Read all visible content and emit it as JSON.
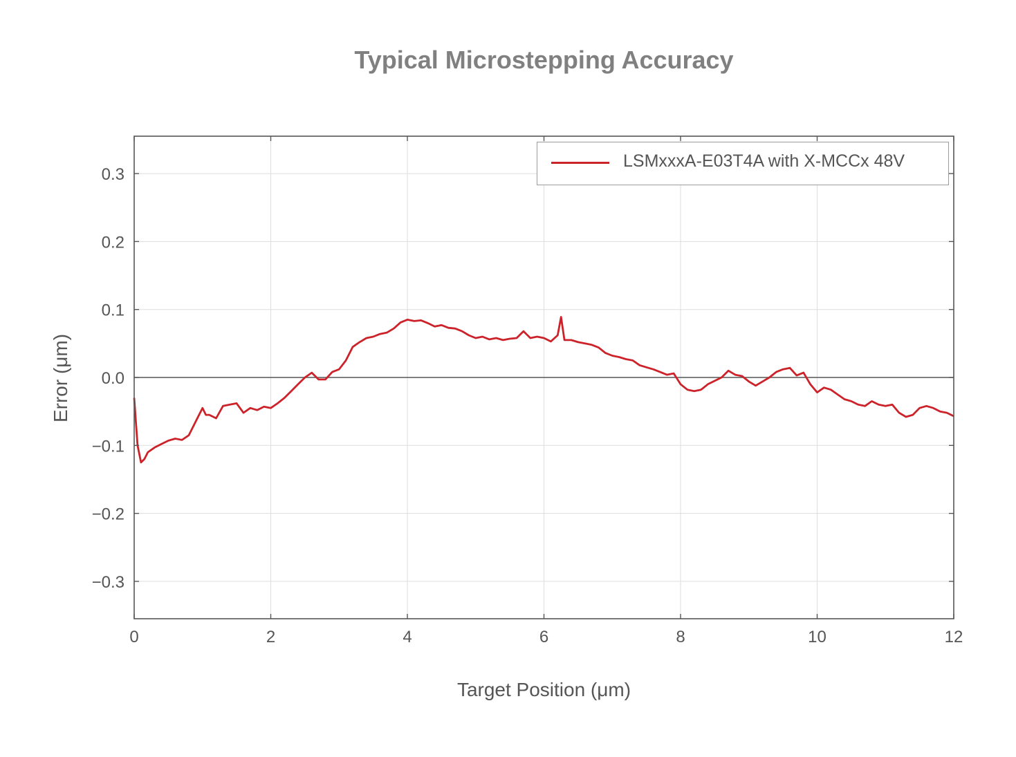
{
  "chart_data": {
    "type": "line",
    "title": "Typical Microstepping Accuracy",
    "xlabel": "Target Position (μm)",
    "ylabel": "Error (μm)",
    "xlim": [
      0,
      12
    ],
    "ylim": [
      -0.355,
      0.355
    ],
    "xticks": [
      0,
      2,
      4,
      6,
      8,
      10,
      12
    ],
    "xtick_labels": [
      "0",
      "2",
      "4",
      "6",
      "8",
      "10",
      "12"
    ],
    "yticks": [
      0.3,
      0.2,
      0.1,
      0.0,
      -0.1,
      -0.2,
      -0.3
    ],
    "ytick_labels": [
      "0.3",
      "0.2",
      "0.1",
      "0.0",
      "−0.1",
      "−0.2",
      "−0.3"
    ],
    "grid": true,
    "zero_line": true,
    "legend_position": "top-right",
    "series": [
      {
        "name": "LSMxxxA-E03T4A with X-MCCx 48V",
        "color": "#cc2229",
        "x": [
          0,
          0.05,
          0.1,
          0.15,
          0.2,
          0.3,
          0.4,
          0.5,
          0.6,
          0.7,
          0.8,
          0.9,
          1.0,
          1.05,
          1.1,
          1.2,
          1.3,
          1.4,
          1.5,
          1.6,
          1.7,
          1.8,
          1.9,
          2.0,
          2.1,
          2.2,
          2.3,
          2.4,
          2.5,
          2.6,
          2.7,
          2.8,
          2.9,
          3.0,
          3.1,
          3.2,
          3.3,
          3.4,
          3.5,
          3.6,
          3.7,
          3.8,
          3.9,
          4.0,
          4.1,
          4.2,
          4.3,
          4.4,
          4.5,
          4.6,
          4.7,
          4.8,
          4.9,
          5.0,
          5.1,
          5.2,
          5.3,
          5.4,
          5.5,
          5.6,
          5.7,
          5.8,
          5.9,
          6.0,
          6.1,
          6.2,
          6.25,
          6.3,
          6.4,
          6.5,
          6.6,
          6.7,
          6.8,
          6.9,
          7.0,
          7.1,
          7.2,
          7.3,
          7.4,
          7.5,
          7.6,
          7.7,
          7.8,
          7.9,
          8.0,
          8.1,
          8.2,
          8.3,
          8.4,
          8.5,
          8.6,
          8.7,
          8.8,
          8.9,
          9.0,
          9.1,
          9.2,
          9.3,
          9.4,
          9.5,
          9.6,
          9.7,
          9.8,
          9.9,
          10.0,
          10.1,
          10.2,
          10.3,
          10.4,
          10.5,
          10.6,
          10.7,
          10.8,
          10.9,
          11.0,
          11.1,
          11.2,
          11.3,
          11.4,
          11.5,
          11.6,
          11.7,
          11.8,
          11.9,
          12.0
        ],
        "y": [
          -0.03,
          -0.1,
          -0.125,
          -0.12,
          -0.11,
          -0.103,
          -0.098,
          -0.093,
          -0.09,
          -0.092,
          -0.085,
          -0.065,
          -0.045,
          -0.055,
          -0.055,
          -0.06,
          -0.042,
          -0.04,
          -0.038,
          -0.052,
          -0.045,
          -0.048,
          -0.043,
          -0.045,
          -0.038,
          -0.03,
          -0.02,
          -0.01,
          0.0,
          0.007,
          -0.003,
          -0.003,
          0.008,
          0.012,
          0.025,
          0.045,
          0.052,
          0.058,
          0.06,
          0.064,
          0.066,
          0.072,
          0.081,
          0.085,
          0.083,
          0.084,
          0.08,
          0.075,
          0.077,
          0.073,
          0.072,
          0.068,
          0.062,
          0.058,
          0.06,
          0.056,
          0.058,
          0.055,
          0.057,
          0.058,
          0.068,
          0.058,
          0.06,
          0.058,
          0.053,
          0.062,
          0.089,
          0.055,
          0.055,
          0.052,
          0.05,
          0.048,
          0.044,
          0.036,
          0.032,
          0.03,
          0.027,
          0.025,
          0.018,
          0.015,
          0.012,
          0.008,
          0.004,
          0.006,
          -0.01,
          -0.018,
          -0.02,
          -0.018,
          -0.01,
          -0.005,
          0.0,
          0.01,
          0.004,
          0.002,
          -0.006,
          -0.012,
          -0.006,
          0.0,
          0.008,
          0.012,
          0.014,
          0.003,
          0.007,
          -0.01,
          -0.022,
          -0.015,
          -0.018,
          -0.025,
          -0.032,
          -0.035,
          -0.04,
          -0.042,
          -0.035,
          -0.04,
          -0.042,
          -0.04,
          -0.052,
          -0.058,
          -0.055,
          -0.045,
          -0.042,
          -0.045,
          -0.05,
          -0.052,
          -0.057
        ]
      }
    ]
  }
}
